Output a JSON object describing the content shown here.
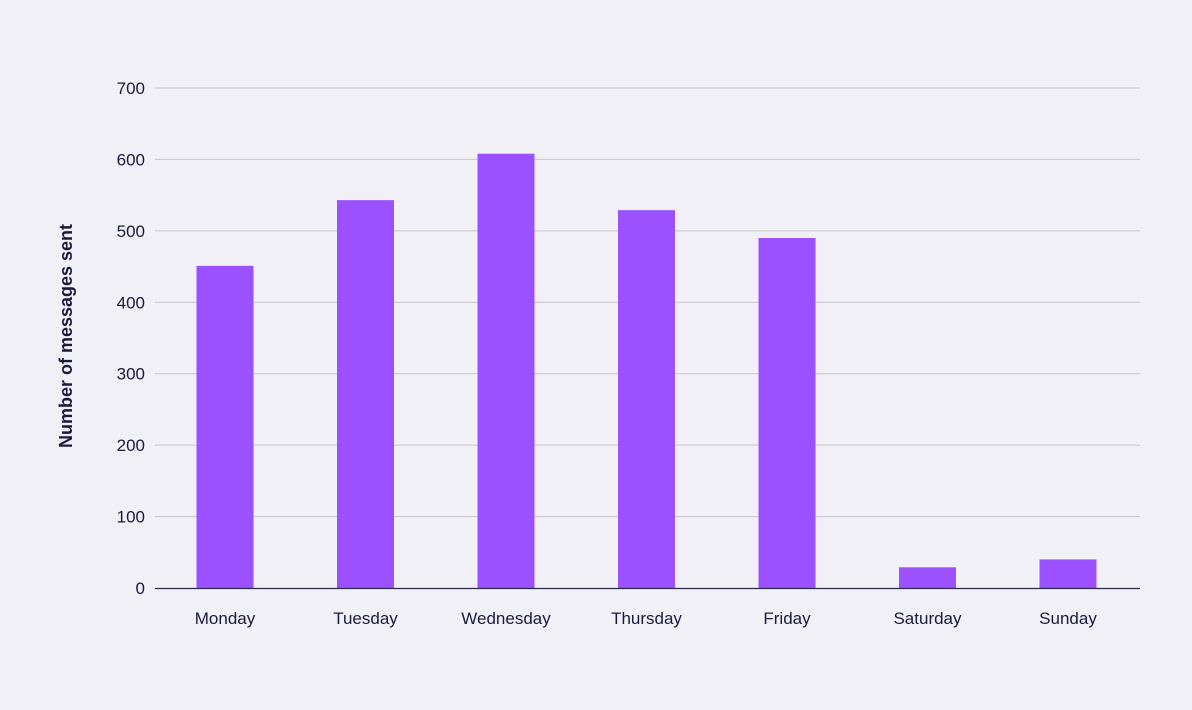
{
  "colors": {
    "background": "#f1f0f6",
    "bar": "#9b51ff",
    "gridline": "#c4c3cc",
    "axis": "#2a2a4a",
    "text": "#1a1a3d"
  },
  "chart_data": {
    "type": "bar",
    "title": "",
    "xlabel": "",
    "ylabel": "Number of messages sent",
    "categories": [
      "Monday",
      "Tuesday",
      "Wednesday",
      "Thursday",
      "Friday",
      "Saturday",
      "Sunday"
    ],
    "values": [
      451,
      543,
      608,
      529,
      490,
      29,
      40
    ],
    "ylim": [
      0,
      700
    ],
    "yticks": [
      0,
      100,
      200,
      300,
      400,
      500,
      600,
      700
    ],
    "grid": true,
    "legend": "none"
  }
}
